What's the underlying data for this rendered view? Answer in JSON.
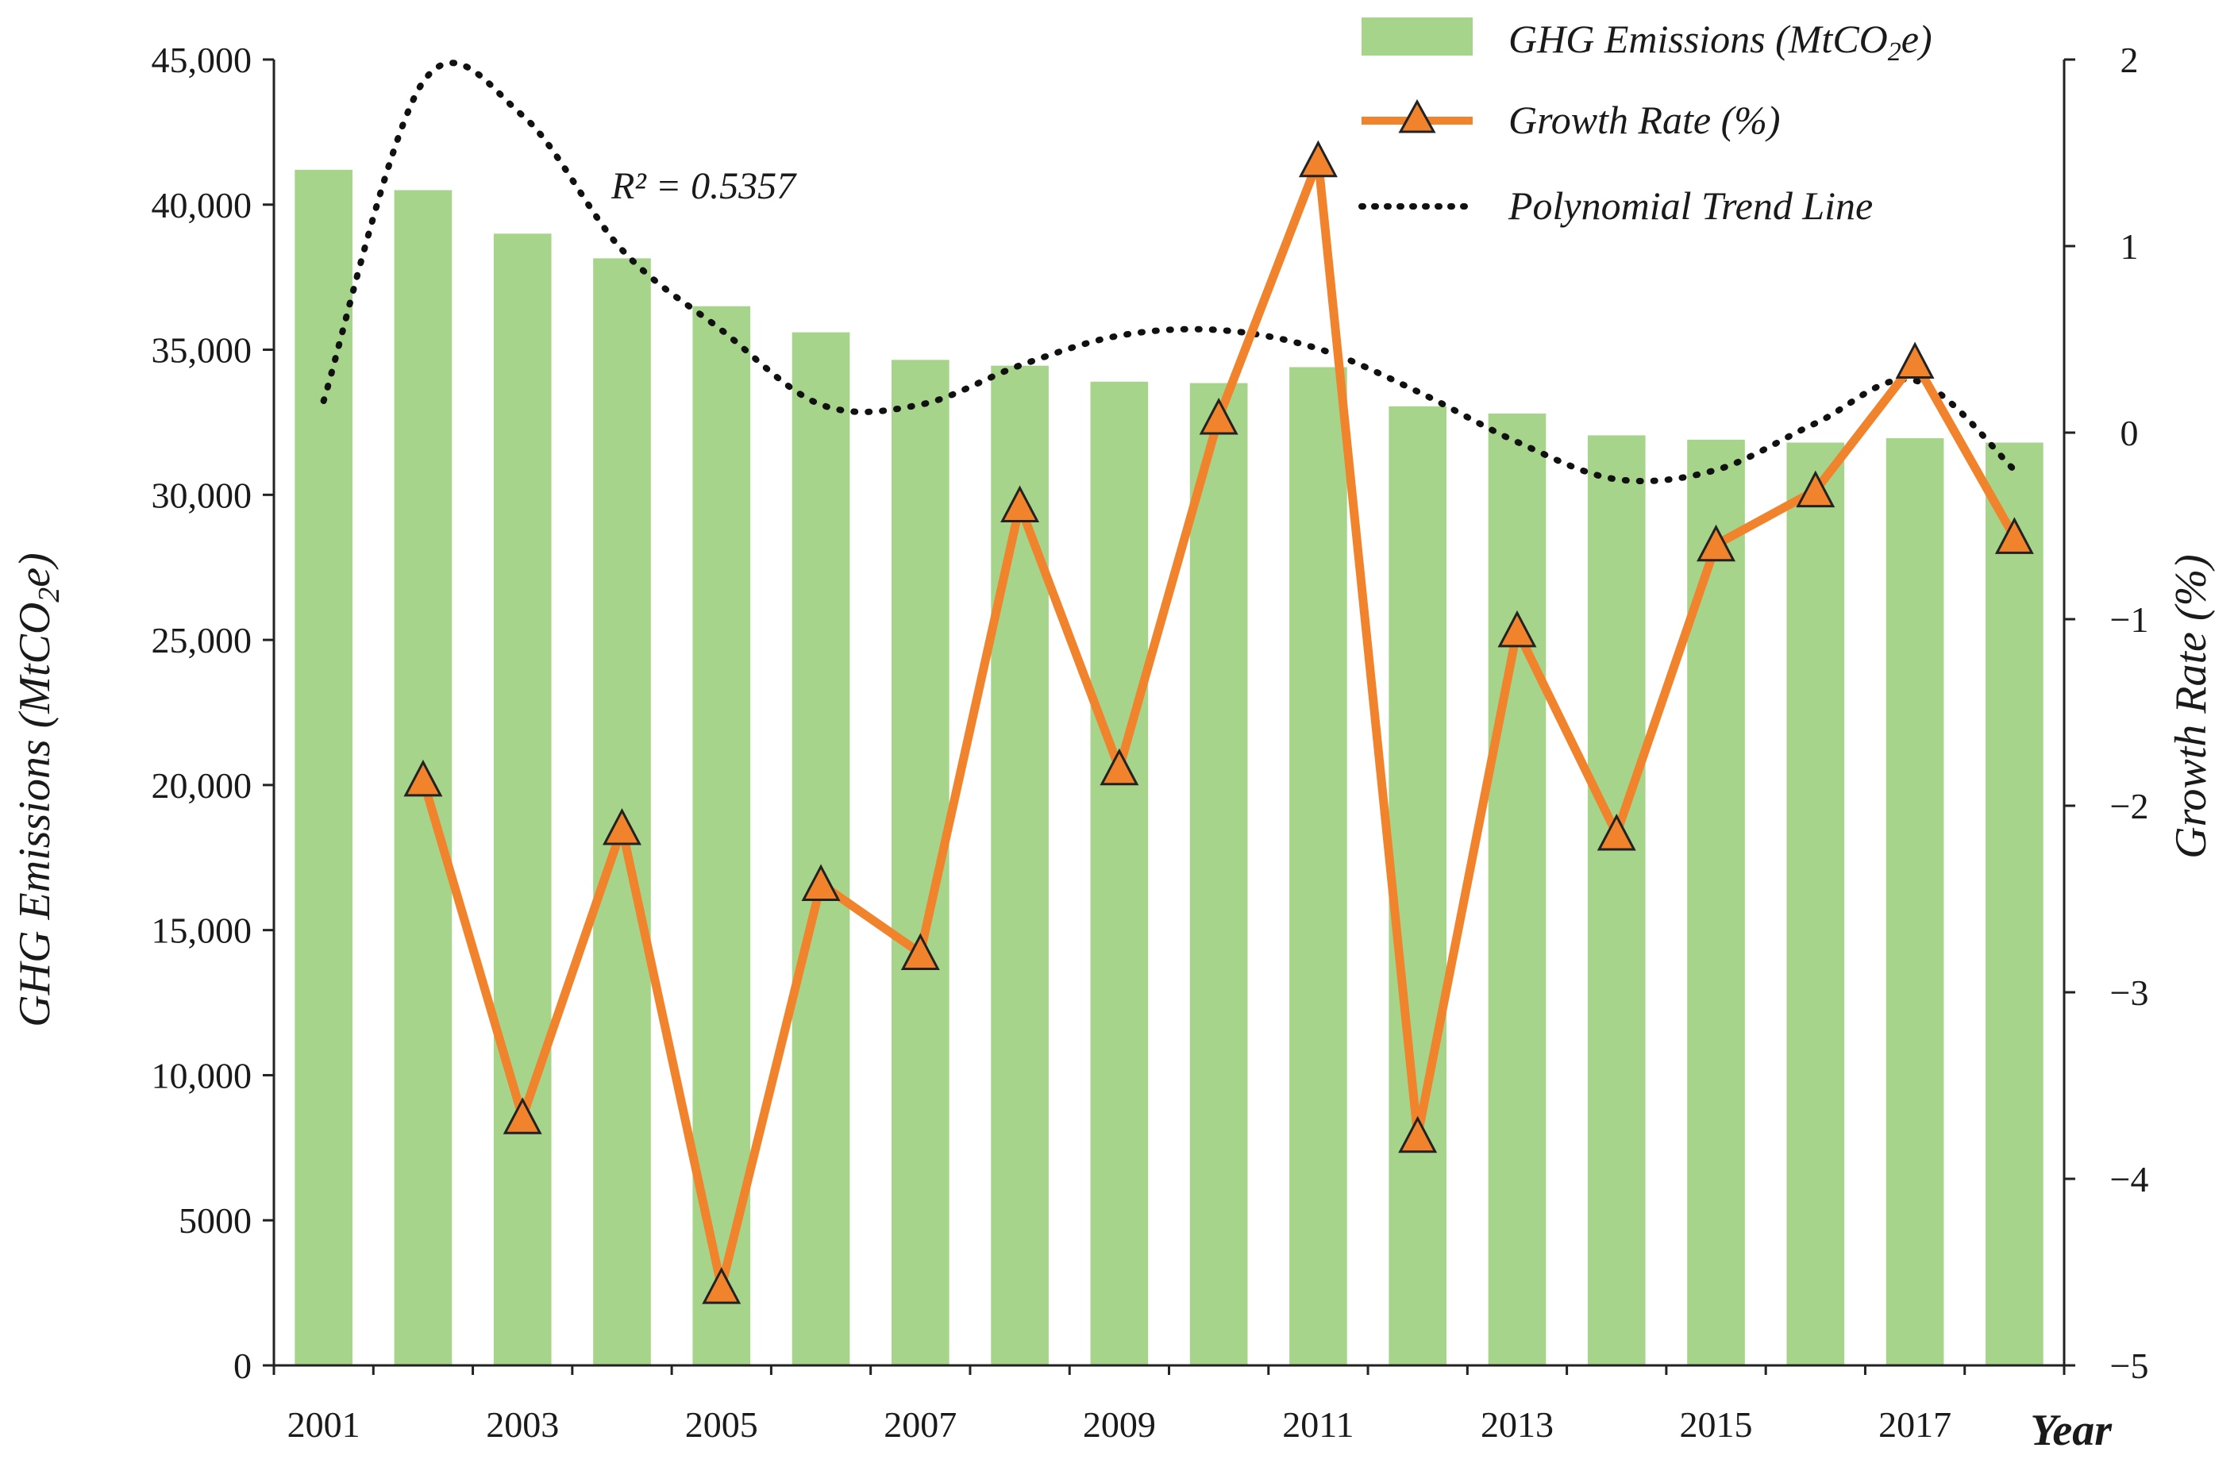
{
  "chart_data": {
    "type": "bar",
    "categories": [
      "2001",
      "2002",
      "2003",
      "2004",
      "2005",
      "2006",
      "2007",
      "2008",
      "2009",
      "2010",
      "2011",
      "2012",
      "2013",
      "2014",
      "2015",
      "2016",
      "2017",
      "2018"
    ],
    "x_tick_labels": [
      "2001",
      "2003",
      "2005",
      "2007",
      "2009",
      "2011",
      "2013",
      "2015",
      "2017"
    ],
    "xlabel": "Year",
    "ylabel": "GHG Emissions (MtCO2e)",
    "ylabel_parts": {
      "main": "GHG Emissions (MtCO",
      "sub": "2",
      "end": "e)"
    },
    "y2label": "Growth Rate (%)",
    "ylim": [
      0,
      45000
    ],
    "y_tick_labels": [
      "0",
      "5000",
      "10,000",
      "15,000",
      "20,000",
      "25,000",
      "30,000",
      "35,000",
      "40,000",
      "45,000"
    ],
    "y2lim": [
      -5,
      2
    ],
    "y2_tick_labels": [
      "−5",
      "−4",
      "−3",
      "−2",
      "−1",
      "0",
      "1",
      "2"
    ],
    "series": [
      {
        "name": "GHG Emissions (MtCO2e)",
        "legend_parts": {
          "main": "GHG Emissions (MtCO",
          "sub": "2",
          "end": "e)"
        },
        "kind": "bar",
        "axis": "left",
        "color": "#a7d48b",
        "values": [
          41200,
          40500,
          39000,
          38150,
          36500,
          35600,
          34650,
          34450,
          33900,
          33850,
          34400,
          33050,
          32800,
          32050,
          31900,
          31800,
          31950,
          31800
        ]
      },
      {
        "name": "Growth Rate (%)",
        "kind": "line",
        "axis": "right",
        "color": "#f0832c",
        "marker": "triangle",
        "values": [
          null,
          -1.86,
          -3.67,
          -2.12,
          -4.58,
          -2.42,
          -2.79,
          -0.39,
          -1.8,
          0.08,
          1.46,
          -3.77,
          -1.06,
          -2.15,
          -0.6,
          -0.31,
          0.38,
          -0.56
        ]
      },
      {
        "name": "Polynomial Trend Line",
        "kind": "trend",
        "axis": "right",
        "color": "#111111",
        "values": [
          0.17,
          1.88,
          1.7,
          0.98,
          0.55,
          0.15,
          0.15,
          0.36,
          0.52,
          0.55,
          0.45,
          0.22,
          -0.05,
          -0.25,
          -0.2,
          0.05,
          0.28,
          -0.2
        ]
      }
    ],
    "annotations": [
      {
        "text": "R² = 0.5357"
      }
    ],
    "legend": "top-right",
    "grid": false
  },
  "colors": {
    "bar": "#a7d48b",
    "line": "#f0832c",
    "marker_stroke": "#222222",
    "trend": "#111111",
    "axis": "#222222"
  }
}
